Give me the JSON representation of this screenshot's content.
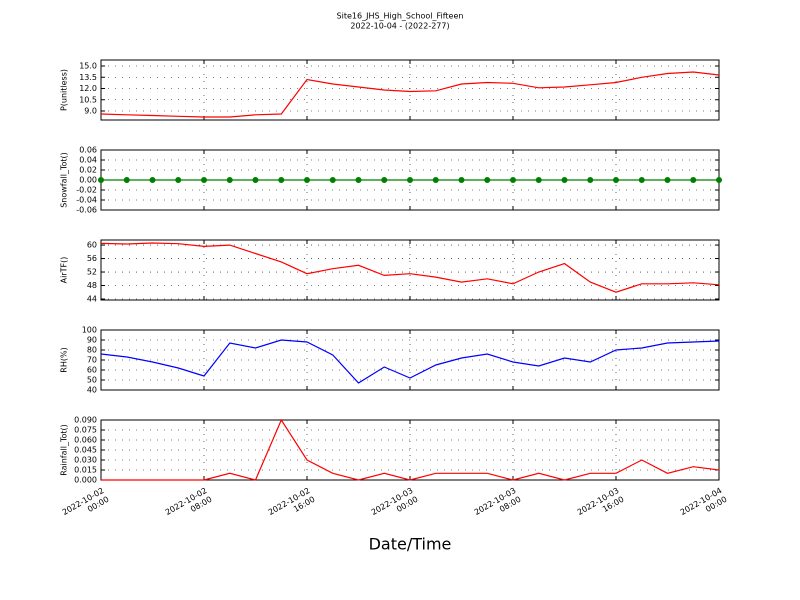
{
  "title": "Site16_JHS_High_School_Fifteen",
  "subtitle": "2022-10-04 - (2022-277)",
  "x_label": "Date/Time",
  "chart_data": [
    {
      "type": "line",
      "ylabel": "P(unitless)",
      "color": "#ff0000",
      "x": [
        "2022-10-02 00:00",
        "2022-10-02 02:00",
        "2022-10-02 04:00",
        "2022-10-02 06:00",
        "2022-10-02 08:00",
        "2022-10-02 10:00",
        "2022-10-02 12:00",
        "2022-10-02 14:00",
        "2022-10-02 16:00",
        "2022-10-02 18:00",
        "2022-10-02 20:00",
        "2022-10-02 22:00",
        "2022-10-03 00:00",
        "2022-10-03 02:00",
        "2022-10-03 04:00",
        "2022-10-03 06:00",
        "2022-10-03 08:00",
        "2022-10-03 10:00",
        "2022-10-03 12:00",
        "2022-10-03 14:00",
        "2022-10-03 16:00",
        "2022-10-03 18:00",
        "2022-10-03 20:00",
        "2022-10-03 22:00",
        "2022-10-04 00:00"
      ],
      "values": [
        8.6,
        8.5,
        8.4,
        8.3,
        8.2,
        8.2,
        8.5,
        8.6,
        13.2,
        12.6,
        12.2,
        11.8,
        11.6,
        11.7,
        12.6,
        12.8,
        12.7,
        12.1,
        12.2,
        12.5,
        12.8,
        13.5,
        14.0,
        14.2,
        13.8
      ],
      "xlim": [
        "2022-10-02 00:00",
        "2022-10-04 00:00"
      ],
      "xticks": [
        "2022-10-02 00:00",
        "2022-10-02 08:00",
        "2022-10-02 16:00",
        "2022-10-03 00:00",
        "2022-10-03 08:00",
        "2022-10-03 16:00",
        "2022-10-04 00:00"
      ],
      "ylim": [
        7.8,
        15.8
      ],
      "yticks": [
        {
          "value": 9,
          "label": "9.0"
        },
        10.5,
        {
          "value": 12,
          "label": "12.0"
        },
        13.5,
        {
          "value": 15,
          "label": "15.0"
        }
      ],
      "grid": true
    },
    {
      "type": "line",
      "ylabel": "Snowfall_Tot()",
      "color": "#008000",
      "marker": "o",
      "x": [
        "2022-10-02 00:00",
        "2022-10-02 02:00",
        "2022-10-02 04:00",
        "2022-10-02 06:00",
        "2022-10-02 08:00",
        "2022-10-02 10:00",
        "2022-10-02 12:00",
        "2022-10-02 14:00",
        "2022-10-02 16:00",
        "2022-10-02 18:00",
        "2022-10-02 20:00",
        "2022-10-02 22:00",
        "2022-10-03 00:00",
        "2022-10-03 02:00",
        "2022-10-03 04:00",
        "2022-10-03 06:00",
        "2022-10-03 08:00",
        "2022-10-03 10:00",
        "2022-10-03 12:00",
        "2022-10-03 14:00",
        "2022-10-03 16:00",
        "2022-10-03 18:00",
        "2022-10-03 20:00",
        "2022-10-03 22:00",
        "2022-10-04 00:00"
      ],
      "values": [
        0,
        0,
        0,
        0,
        0,
        0,
        0,
        0,
        0,
        0,
        0,
        0,
        0,
        0,
        0,
        0,
        0,
        0,
        0,
        0,
        0,
        0,
        0,
        0,
        0
      ],
      "xlim": [
        "2022-10-02 00:00",
        "2022-10-04 00:00"
      ],
      "xticks": [
        "2022-10-02 00:00",
        "2022-10-02 08:00",
        "2022-10-02 16:00",
        "2022-10-03 00:00",
        "2022-10-03 08:00",
        "2022-10-03 16:00",
        "2022-10-04 00:00"
      ],
      "ylim": [
        -0.06,
        0.06
      ],
      "yticks": [
        -0.06,
        -0.04,
        -0.02,
        {
          "value": 0,
          "label": "0.00"
        },
        0.02,
        0.04,
        0.06
      ],
      "grid": true
    },
    {
      "type": "line",
      "ylabel": "AirTF()",
      "color": "#ff0000",
      "x": [
        "2022-10-02 00:00",
        "2022-10-02 02:00",
        "2022-10-02 04:00",
        "2022-10-02 06:00",
        "2022-10-02 08:00",
        "2022-10-02 10:00",
        "2022-10-02 12:00",
        "2022-10-02 14:00",
        "2022-10-02 16:00",
        "2022-10-02 18:00",
        "2022-10-02 20:00",
        "2022-10-02 22:00",
        "2022-10-03 00:00",
        "2022-10-03 02:00",
        "2022-10-03 04:00",
        "2022-10-03 06:00",
        "2022-10-03 08:00",
        "2022-10-03 10:00",
        "2022-10-03 12:00",
        "2022-10-03 14:00",
        "2022-10-03 16:00",
        "2022-10-03 18:00",
        "2022-10-03 20:00",
        "2022-10-03 22:00",
        "2022-10-04 00:00"
      ],
      "values": [
        60.5,
        60.3,
        60.6,
        60.4,
        59.6,
        60,
        57.5,
        55,
        51.5,
        53,
        54,
        51,
        51.5,
        50.5,
        49,
        50,
        48.5,
        52,
        54.5,
        49,
        46,
        48.5,
        48.5,
        48.8,
        48.2
      ],
      "xlim": [
        "2022-10-02 00:00",
        "2022-10-04 00:00"
      ],
      "xticks": [
        "2022-10-02 00:00",
        "2022-10-02 08:00",
        "2022-10-02 16:00",
        "2022-10-03 00:00",
        "2022-10-03 08:00",
        "2022-10-03 16:00",
        "2022-10-04 00:00"
      ],
      "ylim": [
        43.7,
        61.5
      ],
      "yticks": [
        44,
        48,
        52,
        56,
        60
      ],
      "grid": true
    },
    {
      "type": "line",
      "ylabel": "RH(%)",
      "color": "#0000ff",
      "x": [
        "2022-10-02 00:00",
        "2022-10-02 02:00",
        "2022-10-02 04:00",
        "2022-10-02 06:00",
        "2022-10-02 08:00",
        "2022-10-02 10:00",
        "2022-10-02 12:00",
        "2022-10-02 14:00",
        "2022-10-02 16:00",
        "2022-10-02 18:00",
        "2022-10-02 20:00",
        "2022-10-02 22:00",
        "2022-10-03 00:00",
        "2022-10-03 02:00",
        "2022-10-03 04:00",
        "2022-10-03 06:00",
        "2022-10-03 08:00",
        "2022-10-03 10:00",
        "2022-10-03 12:00",
        "2022-10-03 14:00",
        "2022-10-03 16:00",
        "2022-10-03 18:00",
        "2022-10-03 20:00",
        "2022-10-03 22:00",
        "2022-10-04 00:00"
      ],
      "values": [
        76,
        73,
        68,
        62,
        54,
        87,
        82,
        90,
        88,
        75,
        47,
        63,
        52,
        65,
        72,
        76,
        68,
        64,
        72,
        68,
        80,
        82,
        87,
        88,
        89
      ],
      "xlim": [
        "2022-10-02 00:00",
        "2022-10-04 00:00"
      ],
      "xticks": [
        "2022-10-02 00:00",
        "2022-10-02 08:00",
        "2022-10-02 16:00",
        "2022-10-03 00:00",
        "2022-10-03 08:00",
        "2022-10-03 16:00",
        "2022-10-04 00:00"
      ],
      "ylim": [
        40,
        100
      ],
      "yticks": [
        40,
        50,
        60,
        70,
        80,
        90,
        100
      ],
      "grid": true
    },
    {
      "type": "line",
      "ylabel": "Rainfall_Tot()",
      "color": "#ff0000",
      "xtick_labels": true,
      "x": [
        "2022-10-02 00:00",
        "2022-10-02 02:00",
        "2022-10-02 04:00",
        "2022-10-02 06:00",
        "2022-10-02 08:00",
        "2022-10-02 10:00",
        "2022-10-02 12:00",
        "2022-10-02 14:00",
        "2022-10-02 16:00",
        "2022-10-02 18:00",
        "2022-10-02 20:00",
        "2022-10-02 22:00",
        "2022-10-03 00:00",
        "2022-10-03 02:00",
        "2022-10-03 04:00",
        "2022-10-03 06:00",
        "2022-10-03 08:00",
        "2022-10-03 10:00",
        "2022-10-03 12:00",
        "2022-10-03 14:00",
        "2022-10-03 16:00",
        "2022-10-03 18:00",
        "2022-10-03 20:00",
        "2022-10-03 22:00",
        "2022-10-04 00:00"
      ],
      "values": [
        0,
        0,
        0,
        0,
        0,
        0.01,
        0,
        0.09,
        0.03,
        0.01,
        0,
        0.01,
        0,
        0.01,
        0.01,
        0.01,
        0,
        0.01,
        0,
        0.01,
        0.01,
        0.03,
        0.01,
        0.02,
        0.015
      ],
      "xlim": [
        "2022-10-02 00:00",
        "2022-10-04 00:00"
      ],
      "xticks": [
        "2022-10-02 00:00",
        "2022-10-02 08:00",
        "2022-10-02 16:00",
        "2022-10-03 00:00",
        "2022-10-03 08:00",
        "2022-10-03 16:00",
        "2022-10-04 00:00"
      ],
      "ylim": [
        0,
        0.09
      ],
      "yticks": [
        {
          "value": 0,
          "label": "0.000"
        },
        0.015,
        {
          "value": 0.03,
          "label": "0.030"
        },
        0.045,
        {
          "value": 0.06,
          "label": "0.060"
        },
        0.075,
        {
          "value": 0.09,
          "label": "0.090"
        }
      ],
      "grid": true
    }
  ]
}
